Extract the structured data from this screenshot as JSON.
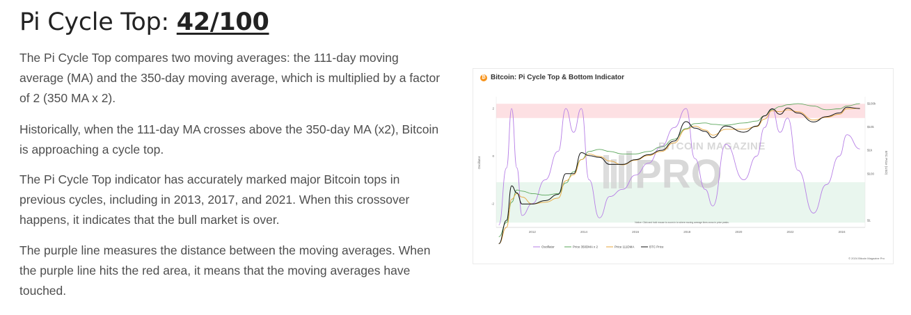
{
  "article": {
    "title_prefix": "Pi Cycle Top: ",
    "score": "42/100",
    "paragraphs": [
      "The Pi Cycle Top compares two moving averages: the 111-day moving average (MA) and the 350-day moving average, which is multiplied by a factor of 2 (350 MA x 2).",
      "Historically, when the 111-day MA crosses above the 350-day MA (x2), Bitcoin is approaching a cycle top.",
      "The Pi Cycle Top indicator has accurately marked major Bitcoin tops in previous cycles, including in 2013, 2017, and 2021. When this crossover happens, it indicates that the bull market is over.",
      "The purple line measures the distance between the moving averages. When the purple line hits the red area, it means that the moving averages have touched."
    ]
  },
  "chart": {
    "icon": "bitcoin-icon",
    "icon_glyph": "₿",
    "watermark_top": "BITCOIN MAGAZINE",
    "watermark_main": "PRO",
    "note": "Notice: Click and hold mouse to zoom in to where moving average lines cross in price peaks.",
    "copyright": "© 2024 Bitcoin Magazine Pro",
    "colors": {
      "oscillator": "#b67ee6",
      "ma350x2": "#5aa65a",
      "ma111": "#e7a63b",
      "price": "#111111",
      "red_band": "#fde0e3",
      "green_band": "#e9f6ee"
    }
  },
  "chart_data": {
    "type": "line",
    "title": "Bitcoin: Pi Cycle Top & Bottom Indicator",
    "x_ticks": [
      "2012",
      "2014",
      "2016",
      "2018",
      "2020",
      "2022",
      "2024"
    ],
    "left_axis": {
      "label": "Oscillator",
      "ticks": [
        "2",
        "0",
        "-2"
      ],
      "range": [
        -3,
        2.5
      ]
    },
    "right_axis": {
      "label": "BTC Price (USD)",
      "scale": "log",
      "ticks": [
        "$100k",
        "$10k",
        "$1k",
        "$100",
        "$1"
      ],
      "range": [
        0.5,
        200000
      ]
    },
    "bands": [
      {
        "name": "red",
        "oscillator_range": [
          1.6,
          2.2
        ]
      },
      {
        "name": "green",
        "oscillator_range": [
          -2.8,
          -1.1
        ]
      }
    ],
    "legend": [
      "Oscillator",
      "Price 350DMA x 2",
      "Price 111DMA",
      "BTC Price"
    ],
    "x": [
      2010.7,
      2011.0,
      2011.2,
      2011.4,
      2011.6,
      2012.0,
      2012.5,
      2013.0,
      2013.3,
      2013.6,
      2013.9,
      2014.2,
      2014.6,
      2015.0,
      2015.5,
      2016.0,
      2016.5,
      2017.0,
      2017.5,
      2017.96,
      2018.3,
      2018.7,
      2019.0,
      2019.5,
      2020.2,
      2020.7,
      2021.0,
      2021.3,
      2021.6,
      2021.9,
      2022.3,
      2022.9,
      2023.4,
      2023.9,
      2024.2,
      2024.7
    ],
    "series": [
      {
        "name": "BTC Price",
        "values": [
          0.1,
          1,
          30,
          15,
          5,
          5,
          7,
          13,
          100,
          100,
          800,
          600,
          500,
          250,
          250,
          400,
          650,
          1000,
          2500,
          17000,
          9000,
          6500,
          3500,
          11000,
          6000,
          11000,
          30000,
          60000,
          35000,
          65000,
          40000,
          16500,
          28000,
          40000,
          70000,
          62000
        ]
      },
      {
        "name": "Price 111DMA",
        "values": [
          0.1,
          0.5,
          8,
          14,
          10,
          5,
          6,
          9,
          50,
          90,
          400,
          700,
          550,
          350,
          240,
          380,
          600,
          900,
          2100,
          8000,
          11000,
          7500,
          4500,
          8000,
          8000,
          10500,
          22000,
          50000,
          45000,
          55000,
          45000,
          20000,
          26000,
          35000,
          60000,
          63000
        ]
      },
      {
        "name": "Price 350DMA x 2",
        "values": [
          0.2,
          0.8,
          6,
          20,
          18,
          14,
          12,
          14,
          40,
          120,
          400,
          900,
          1100,
          900,
          700,
          700,
          900,
          1400,
          3000,
          8500,
          14000,
          15000,
          13000,
          12000,
          15000,
          18000,
          30000,
          55000,
          75000,
          90000,
          100000,
          80000,
          55000,
          60000,
          80000,
          100000
        ]
      },
      {
        "name": "Oscillator",
        "values": [
          -2.9,
          -0.5,
          2.0,
          -0.5,
          -2.5,
          -2.0,
          -1.0,
          0.2,
          2.0,
          1.0,
          2.0,
          -1.0,
          -2.6,
          -1.7,
          -1.4,
          -0.8,
          -0.3,
          0.4,
          1.2,
          2.0,
          -0.1,
          -1.4,
          -2.1,
          0.5,
          -1.0,
          0.0,
          1.2,
          2.0,
          1.0,
          1.6,
          -0.6,
          -2.4,
          -1.2,
          0.0,
          0.9,
          0.3
        ]
      }
    ]
  }
}
